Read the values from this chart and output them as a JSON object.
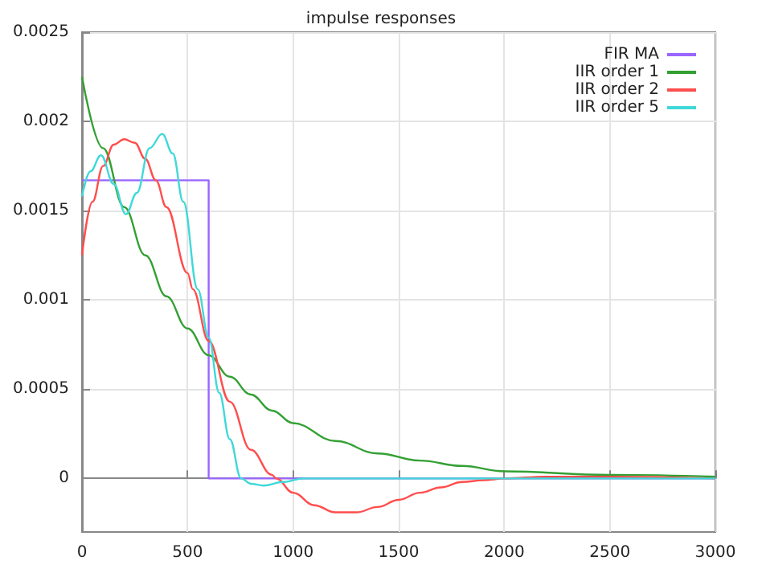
{
  "chart_data": {
    "type": "line",
    "title": "impulse responses",
    "xlim": [
      0,
      3000
    ],
    "xticks": [
      0,
      500,
      1000,
      1500,
      2000,
      2500,
      3000
    ],
    "ylim": [
      -0.0003,
      0.0025
    ],
    "yticks": [
      0,
      0.0005,
      0.001,
      0.0015,
      0.002,
      0.0025
    ],
    "grid": true,
    "legend": "top right",
    "marker": "none",
    "line_style": "solid",
    "series": [
      {
        "name": "FIR MA",
        "color": "#9a66ff",
        "x": [
          0,
          600,
          600,
          3000
        ],
        "values": [
          0.00167,
          0.00167,
          0,
          0
        ]
      },
      {
        "name": "IIR order 1",
        "color": "#33a033",
        "x": [
          0,
          100,
          200,
          300,
          400,
          500,
          600,
          700,
          800,
          900,
          1000,
          1200,
          1400,
          1600,
          1800,
          2000,
          2500,
          3000
        ],
        "values": [
          0.00225,
          0.00185,
          0.00152,
          0.00125,
          0.00102,
          0.00084,
          0.00069,
          0.00057,
          0.00047,
          0.00038,
          0.00031,
          0.00021,
          0.00014,
          0.0001,
          7e-05,
          4e-05,
          2e-05,
          1e-05
        ]
      },
      {
        "name": "IIR order 2",
        "color": "#ff4d4d",
        "x": [
          0,
          50,
          100,
          150,
          200,
          250,
          300,
          350,
          400,
          500,
          525,
          600,
          700,
          800,
          900,
          920,
          1000,
          1100,
          1200,
          1300,
          1400,
          1500,
          1600,
          1700,
          1800,
          1900,
          2000,
          2200,
          2500,
          3000
        ],
        "values": [
          0.00125,
          0.00155,
          0.00175,
          0.00187,
          0.0019,
          0.00188,
          0.00179,
          0.00167,
          0.00152,
          0.00115,
          0.00106,
          0.00077,
          0.00043,
          0.00016,
          2e-05,
          0,
          -8e-05,
          -0.00015,
          -0.00019,
          -0.00019,
          -0.00016,
          -0.00012,
          -8e-05,
          -5e-05,
          -2e-05,
          -1e-05,
          0,
          1e-05,
          1e-05,
          0
        ]
      },
      {
        "name": "IIR order 5",
        "color": "#40d8d8",
        "x": [
          0,
          40,
          90,
          150,
          208,
          260,
          320,
          380,
          430,
          480,
          548,
          600,
          650,
          700,
          754,
          800,
          860,
          950,
          1050,
          1500,
          3000
        ],
        "values": [
          0.00158,
          0.00172,
          0.00181,
          0.00165,
          0.00148,
          0.0016,
          0.00185,
          0.00193,
          0.00182,
          0.00155,
          0.00106,
          0.00079,
          0.00048,
          0.00022,
          0,
          -3e-05,
          -4e-05,
          -2e-05,
          0,
          0,
          0
        ]
      }
    ]
  }
}
